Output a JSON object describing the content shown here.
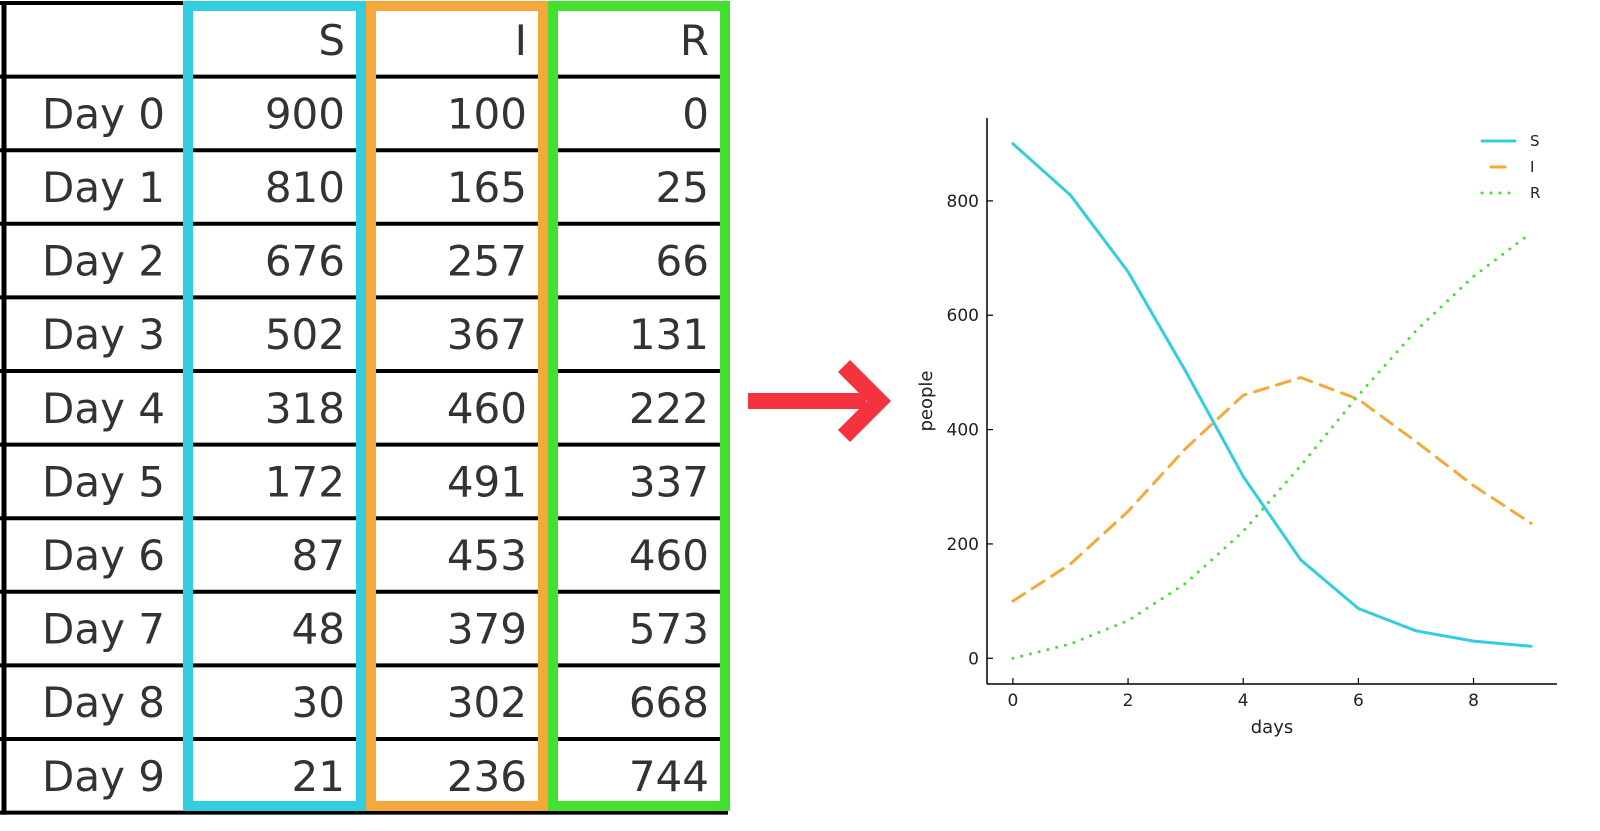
{
  "table": {
    "columns": [
      "S",
      "I",
      "R"
    ],
    "rows": [
      {
        "label": "Day 0",
        "values": [
          "900",
          "100",
          "0"
        ]
      },
      {
        "label": "Day 1",
        "values": [
          "810",
          "165",
          "25"
        ]
      },
      {
        "label": "Day 2",
        "values": [
          "676",
          "257",
          "66"
        ]
      },
      {
        "label": "Day 3",
        "values": [
          "502",
          "367",
          "131"
        ]
      },
      {
        "label": "Day 4",
        "values": [
          "318",
          "460",
          "222"
        ]
      },
      {
        "label": "Day 5",
        "values": [
          "172",
          "491",
          "337"
        ]
      },
      {
        "label": "Day 6",
        "values": [
          "87",
          "453",
          "460"
        ]
      },
      {
        "label": "Day 7",
        "values": [
          "48",
          "379",
          "573"
        ]
      },
      {
        "label": "Day 8",
        "values": [
          "30",
          "302",
          "668"
        ]
      },
      {
        "label": "Day 9",
        "values": [
          "21",
          "236",
          "744"
        ]
      }
    ],
    "column_colors": [
      "#33cde0",
      "#f4a93a",
      "#44e030"
    ]
  },
  "arrow": {
    "icon": "right-arrow-icon",
    "color": "#f5333f"
  },
  "chart_data": {
    "type": "line",
    "x": [
      0,
      1,
      2,
      3,
      4,
      5,
      6,
      7,
      8,
      9
    ],
    "series": [
      {
        "name": "S",
        "color": "#33cde0",
        "style": "solid",
        "values": [
          900,
          810,
          676,
          502,
          318,
          172,
          87,
          48,
          30,
          21
        ]
      },
      {
        "name": "I",
        "color": "#f4a93a",
        "style": "dashed",
        "values": [
          100,
          165,
          257,
          367,
          460,
          491,
          453,
          379,
          302,
          236
        ]
      },
      {
        "name": "R",
        "color": "#44e030",
        "style": "dotted",
        "values": [
          0,
          25,
          66,
          131,
          222,
          337,
          460,
          573,
          668,
          744
        ]
      }
    ],
    "xlabel": "days",
    "ylabel": "people",
    "xticks": [
      0,
      2,
      4,
      6,
      8
    ],
    "yticks": [
      0,
      200,
      400,
      600,
      800
    ],
    "xlim": [
      -0.45,
      9.45
    ],
    "ylim": [
      -45,
      945
    ],
    "grid": false,
    "legend": "top-right"
  }
}
